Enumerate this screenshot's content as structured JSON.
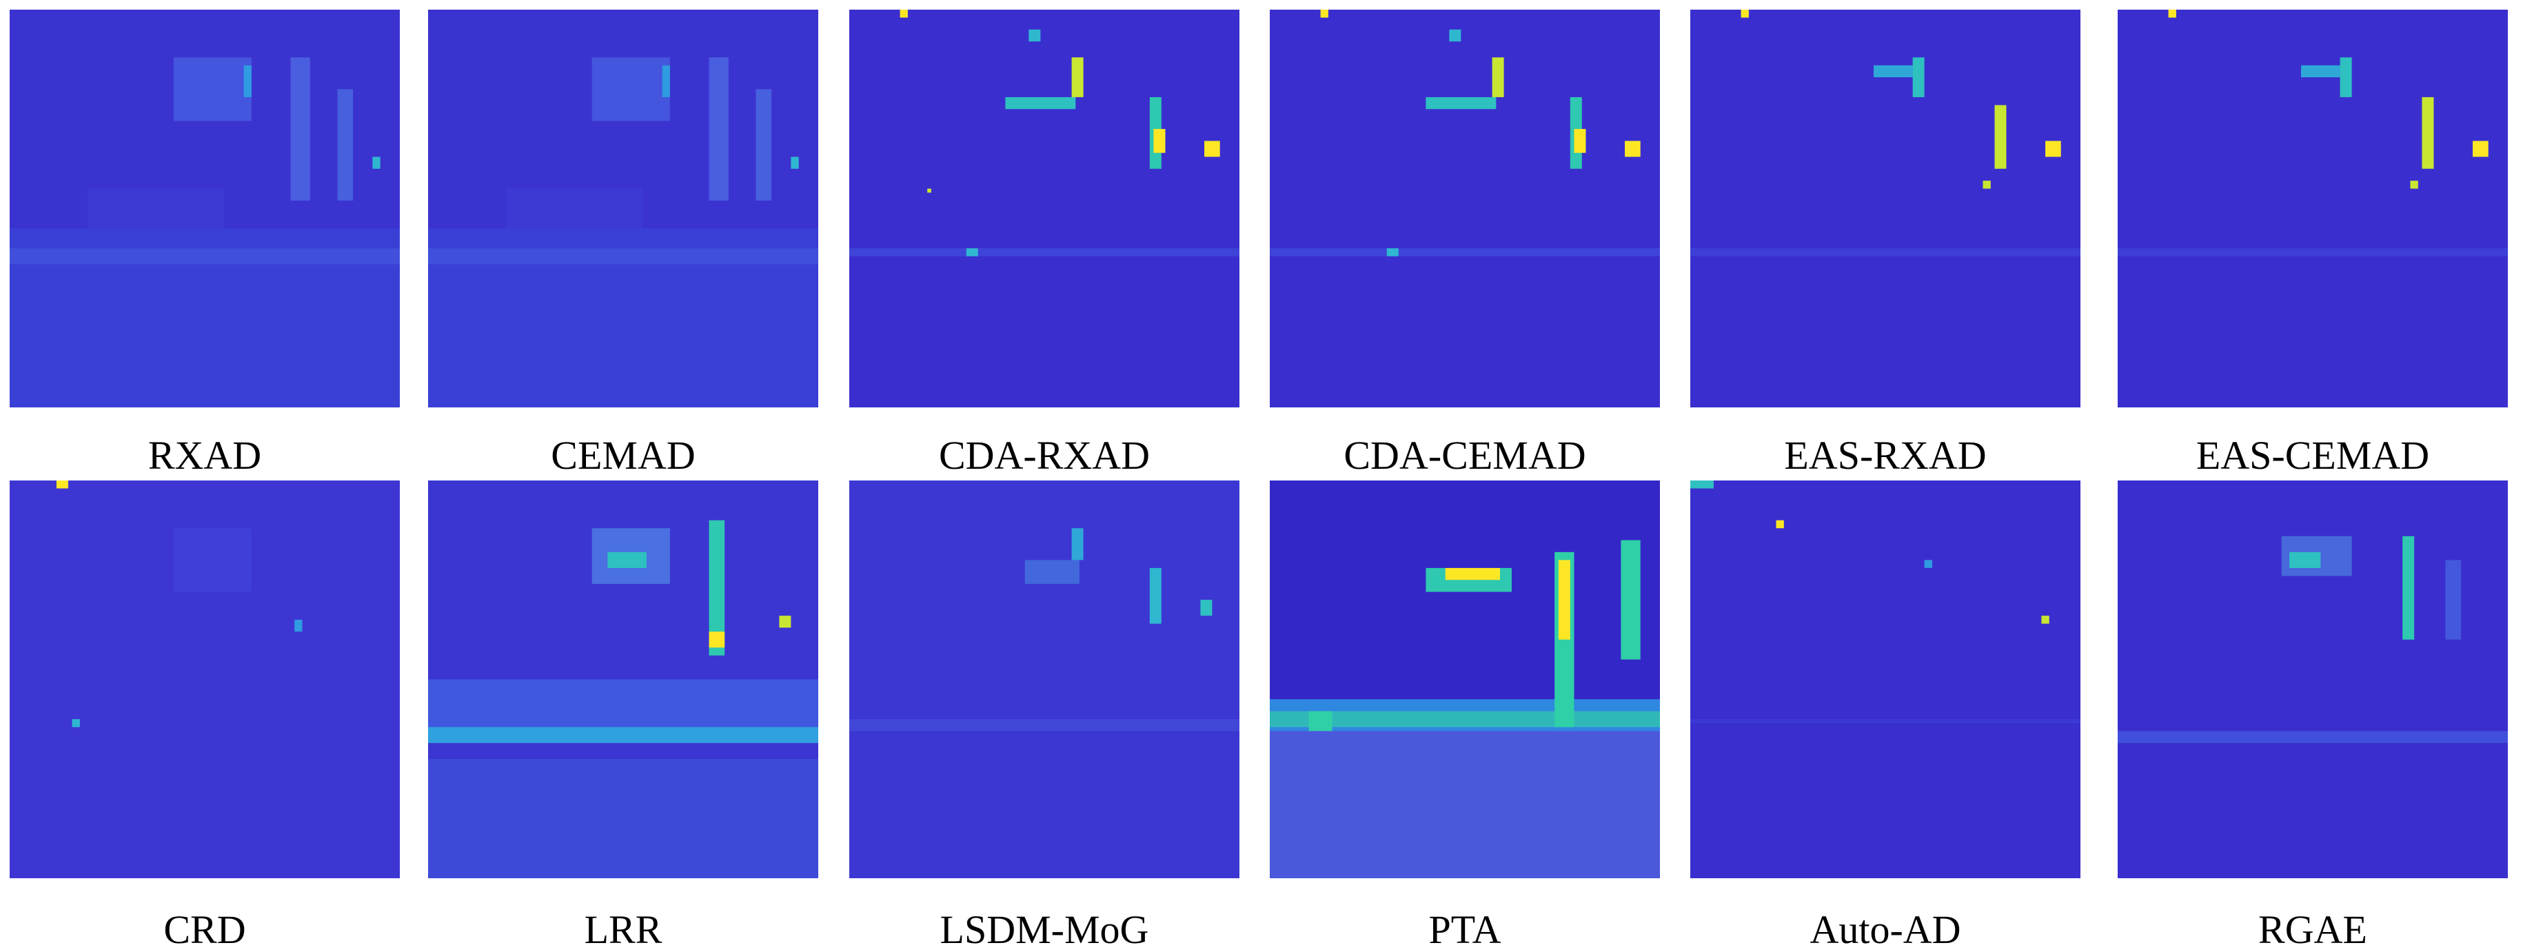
{
  "figure": {
    "colormap": {
      "background": "#3d2fd0",
      "low": "#3f3fe0",
      "mid": "#1f8fe0",
      "teal": "#2fc8b0",
      "high": "#c9e633",
      "peak": "#fde725"
    },
    "panels": [
      {
        "label": "RXAD"
      },
      {
        "label": "CEMAD"
      },
      {
        "label": "CDA-RXAD"
      },
      {
        "label": "CDA-CEMAD"
      },
      {
        "label": "EAS-RXAD"
      },
      {
        "label": "EAS-CEMAD"
      },
      {
        "label": "CRD"
      },
      {
        "label": "LRR"
      },
      {
        "label": "LSDM-MoG"
      },
      {
        "label": "PTA"
      },
      {
        "label": "Auto-AD"
      },
      {
        "label": "RGAE"
      }
    ]
  }
}
